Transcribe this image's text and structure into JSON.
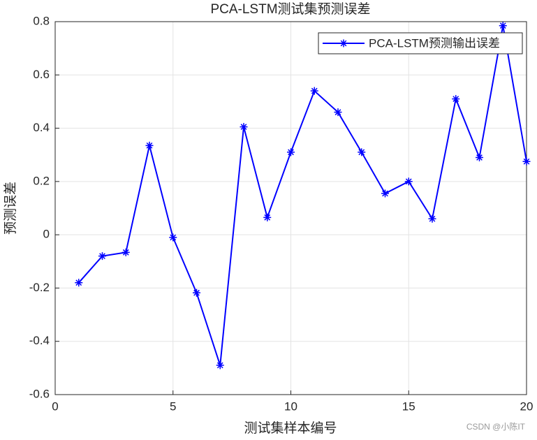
{
  "chart_data": {
    "type": "line",
    "title": "PCA-LSTM测试集预测误差",
    "xlabel": "测试集样本编号",
    "ylabel": "预测误差",
    "x": [
      1,
      2,
      3,
      4,
      5,
      6,
      7,
      8,
      9,
      10,
      11,
      12,
      13,
      14,
      15,
      16,
      17,
      18,
      19,
      20
    ],
    "series": [
      {
        "name": "PCA-LSTM预测输出误差",
        "color": "#0000ff",
        "values": [
          -0.18,
          -0.08,
          -0.066,
          0.335,
          -0.01,
          -0.218,
          -0.49,
          0.405,
          0.065,
          0.31,
          0.54,
          0.46,
          0.31,
          0.155,
          0.2,
          0.06,
          0.51,
          0.29,
          0.785,
          0.275
        ]
      }
    ],
    "xlim": [
      0,
      20
    ],
    "xticks": [
      0,
      5,
      10,
      15,
      20
    ],
    "ylim": [
      -0.6,
      0.8
    ],
    "yticks": [
      -0.6,
      -0.4,
      -0.2,
      0,
      0.2,
      0.4,
      0.6,
      0.8
    ],
    "grid": true,
    "legend": "top-right",
    "watermark": "CSDN @小陈IT"
  }
}
